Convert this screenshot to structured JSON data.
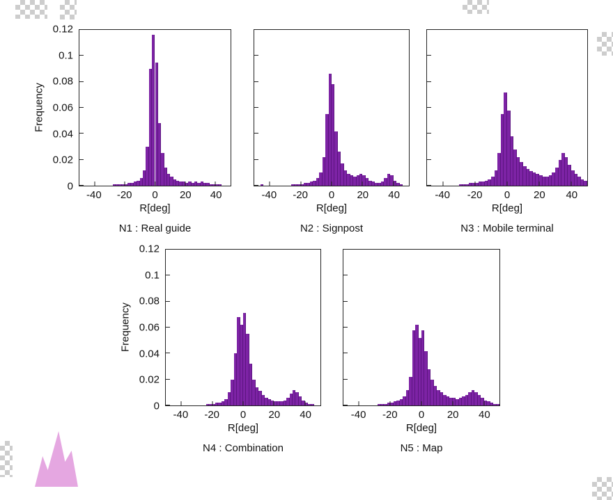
{
  "figure": {
    "background": "#ffffff",
    "bar_color": "#7d23a5",
    "bar_edge_color": "#5c1580",
    "axis_color": "#222222"
  },
  "chart_data": [
    {
      "type": "bar",
      "name": "N1",
      "caption": "N1 : Real guide",
      "xlabel": "R[deg]",
      "ylabel": "Frequency",
      "xlim": [
        -50,
        50
      ],
      "ylim": [
        0,
        0.12
      ],
      "xticks": [
        -40,
        -20,
        0,
        20,
        40
      ],
      "yticks": [
        0,
        0.02,
        0.04,
        0.06,
        0.08,
        0.1,
        0.12
      ],
      "show_y_tick_labels": true,
      "bin_start": -50,
      "bin_width": 2,
      "values": [
        0,
        0,
        0,
        0,
        0,
        0,
        0,
        0,
        0,
        0,
        0,
        0.001,
        0.001,
        0.001,
        0.001,
        0.001,
        0.002,
        0.002,
        0.003,
        0.004,
        0.006,
        0.012,
        0.03,
        0.09,
        0.116,
        0.095,
        0.048,
        0.025,
        0.014,
        0.009,
        0.007,
        0.005,
        0.004,
        0.003,
        0.003,
        0.002,
        0.003,
        0.002,
        0.003,
        0.002,
        0.003,
        0.002,
        0.002,
        0.001,
        0.001,
        0.001,
        0.001,
        0,
        0,
        0
      ]
    },
    {
      "type": "bar",
      "name": "N2",
      "caption": "N2 : Signpost",
      "xlabel": "R[deg]",
      "xlim": [
        -50,
        50
      ],
      "ylim": [
        0,
        0.12
      ],
      "xticks": [
        -40,
        -20,
        0,
        20,
        40
      ],
      "yticks": [
        0,
        0.02,
        0.04,
        0.06,
        0.08,
        0.1,
        0.12
      ],
      "show_y_tick_labels": false,
      "bin_start": -50,
      "bin_width": 2,
      "values": [
        0,
        0,
        0.001,
        0,
        0,
        0,
        0,
        0,
        0,
        0,
        0,
        0,
        0.001,
        0.001,
        0.001,
        0.001,
        0.002,
        0.002,
        0.003,
        0.004,
        0.006,
        0.01,
        0.022,
        0.055,
        0.086,
        0.078,
        0.042,
        0.026,
        0.017,
        0.012,
        0.009,
        0.008,
        0.007,
        0.008,
        0.009,
        0.008,
        0.006,
        0.004,
        0.003,
        0.002,
        0.002,
        0.003,
        0.006,
        0.009,
        0.008,
        0.004,
        0.002,
        0.001,
        0,
        0
      ]
    },
    {
      "type": "bar",
      "name": "N3",
      "caption": "N3 : Mobile terminal",
      "xlabel": "R[deg]",
      "xlim": [
        -50,
        50
      ],
      "ylim": [
        0,
        0.12
      ],
      "xticks": [
        -40,
        -20,
        0,
        20,
        40
      ],
      "yticks": [
        0,
        0.02,
        0.04,
        0.06,
        0.08,
        0.1,
        0.12
      ],
      "show_y_tick_labels": false,
      "bin_start": -50,
      "bin_width": 2,
      "values": [
        0,
        0,
        0,
        0,
        0,
        0,
        0,
        0,
        0,
        0,
        0.001,
        0.001,
        0.001,
        0.002,
        0.002,
        0.002,
        0.003,
        0.003,
        0.004,
        0.005,
        0.007,
        0.012,
        0.025,
        0.055,
        0.072,
        0.058,
        0.038,
        0.028,
        0.022,
        0.018,
        0.015,
        0.013,
        0.011,
        0.01,
        0.009,
        0.008,
        0.007,
        0.007,
        0.008,
        0.01,
        0.014,
        0.02,
        0.025,
        0.022,
        0.016,
        0.012,
        0.009,
        0.007,
        0.005,
        0.004
      ]
    },
    {
      "type": "bar",
      "name": "N4",
      "caption": "N4 : Combination",
      "xlabel": "R[deg]",
      "ylabel": "Frequency",
      "xlim": [
        -50,
        50
      ],
      "ylim": [
        0,
        0.12
      ],
      "xticks": [
        -40,
        -20,
        0,
        20,
        40
      ],
      "yticks": [
        0,
        0.02,
        0.04,
        0.06,
        0.08,
        0.1,
        0.12
      ],
      "show_y_tick_labels": true,
      "bin_start": -50,
      "bin_width": 2,
      "values": [
        0,
        0,
        0,
        0,
        0,
        0,
        0,
        0,
        0,
        0,
        0,
        0,
        0,
        0.001,
        0.001,
        0.001,
        0.002,
        0.002,
        0.003,
        0.005,
        0.01,
        0.02,
        0.04,
        0.068,
        0.062,
        0.071,
        0.055,
        0.032,
        0.02,
        0.014,
        0.011,
        0.008,
        0.006,
        0.005,
        0.004,
        0.003,
        0.003,
        0.003,
        0.004,
        0.006,
        0.009,
        0.012,
        0.01,
        0.007,
        0.004,
        0.002,
        0.001,
        0.001,
        0,
        0
      ]
    },
    {
      "type": "bar",
      "name": "N5",
      "caption": "N5 : Map",
      "xlabel": "R[deg]",
      "xlim": [
        -50,
        50
      ],
      "ylim": [
        0,
        0.12
      ],
      "xticks": [
        -40,
        -20,
        0,
        20,
        40
      ],
      "yticks": [
        0,
        0.02,
        0.04,
        0.06,
        0.08,
        0.1,
        0.12
      ],
      "show_y_tick_labels": false,
      "bin_start": -50,
      "bin_width": 2,
      "values": [
        0,
        0,
        0,
        0,
        0,
        0,
        0,
        0,
        0,
        0,
        0,
        0.001,
        0.001,
        0.001,
        0.002,
        0.002,
        0.003,
        0.004,
        0.005,
        0.007,
        0.012,
        0.022,
        0.058,
        0.062,
        0.052,
        0.058,
        0.042,
        0.028,
        0.02,
        0.015,
        0.012,
        0.01,
        0.008,
        0.007,
        0.006,
        0.006,
        0.005,
        0.006,
        0.007,
        0.008,
        0.01,
        0.012,
        0.01,
        0.008,
        0.006,
        0.004,
        0.003,
        0.002,
        0.001,
        0.001
      ]
    }
  ]
}
